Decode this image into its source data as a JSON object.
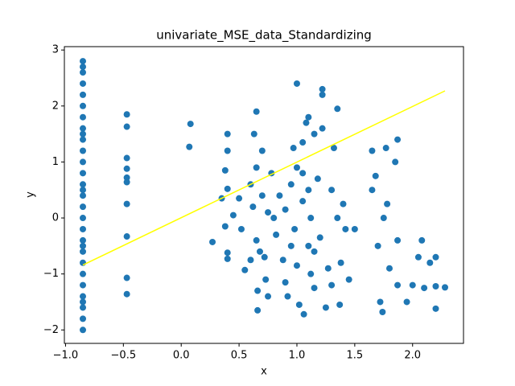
{
  "chart_data": {
    "type": "scatter",
    "title": "univariate_MSE_data_Standardizing",
    "xlabel": "x",
    "ylabel": "y",
    "xlim": [
      -1.01,
      2.44
    ],
    "ylim": [
      -2.24,
      3.06
    ],
    "xticks": [
      {
        "value": -1,
        "label": "−1.0"
      },
      {
        "value": -0.5,
        "label": "−0.5"
      },
      {
        "value": 0,
        "label": "0.0"
      },
      0.5,
      {
        "value": 1,
        "label": "1.0"
      },
      1.5,
      {
        "value": 2,
        "label": "2.0"
      }
    ],
    "yticks": [
      {
        "value": -2,
        "label": "−2"
      },
      {
        "value": -1,
        "label": "−1"
      },
      0,
      1,
      2,
      3
    ],
    "points": {
      "color": "#1f77b4",
      "x": [
        -0.85,
        -0.85,
        -0.85,
        -0.85,
        -0.85,
        -0.85,
        -0.85,
        -0.85,
        -0.85,
        -0.85,
        -0.85,
        -0.85,
        -0.85,
        -0.85,
        -0.85,
        -0.85,
        -0.85,
        -0.85,
        -0.85,
        -0.85,
        -0.85,
        -0.85,
        -0.85,
        -0.85,
        -0.85,
        -0.85,
        -0.85,
        -0.85,
        -0.85,
        -0.85,
        -0.47,
        -0.47,
        -0.47,
        -0.47,
        -0.47,
        -0.47,
        -0.47,
        -0.47,
        -0.47,
        -0.47,
        0.08,
        0.07,
        0.27,
        0.35,
        0.38,
        0.38,
        0.4,
        0.4,
        0.4,
        0.4,
        0.4,
        0.45,
        0.5,
        0.52,
        0.55,
        0.6,
        0.62,
        0.63,
        0.65,
        0.65,
        0.65,
        0.66,
        0.66,
        0.7,
        0.7,
        0.72,
        0.73,
        0.75,
        0.75,
        0.78,
        0.82,
        0.85,
        0.88,
        0.9,
        0.9,
        0.92,
        0.95,
        0.97,
        0.98,
        1.0,
        1.0,
        1.0,
        1.02,
        1.05,
        1.05,
        1.06,
        1.08,
        1.1,
        1.1,
        1.12,
        1.12,
        1.15,
        1.15,
        1.18,
        1.2,
        1.22,
        1.22,
        1.22,
        1.25,
        1.27,
        1.3,
        1.32,
        1.35,
        1.35,
        1.37,
        1.38,
        1.4,
        1.42,
        1.45,
        1.5,
        1.65,
        1.65,
        1.68,
        1.7,
        1.72,
        1.74,
        1.75,
        1.77,
        1.78,
        1.8,
        1.85,
        1.87,
        1.87,
        1.87,
        1.95,
        2.0,
        2.05,
        2.08,
        2.1,
        2.15,
        2.2,
        2.2,
        2.2,
        2.28,
        0.68,
        0.6,
        0.8,
        0.95,
        1.05,
        1.1,
        1.15,
        1.3
      ],
      "y": [
        2.8,
        2.7,
        2.6,
        2.4,
        2.2,
        2.0,
        1.8,
        1.6,
        1.4,
        1.2,
        1.0,
        0.8,
        0.6,
        0.4,
        0.2,
        0.0,
        -0.2,
        -0.4,
        -0.6,
        -0.8,
        -1.0,
        -1.2,
        -1.4,
        -1.6,
        -1.8,
        -2.0,
        1.5,
        0.5,
        -0.5,
        -1.5,
        1.85,
        1.63,
        1.07,
        0.88,
        0.72,
        0.64,
        0.25,
        -0.33,
        -1.07,
        -1.36,
        1.68,
        1.27,
        -0.43,
        0.35,
        -0.15,
        0.85,
        1.5,
        1.2,
        0.52,
        -0.73,
        -0.62,
        0.05,
        0.35,
        -0.2,
        -0.93,
        0.6,
        0.2,
        1.5,
        1.9,
        0.9,
        -0.4,
        -1.65,
        -1.3,
        0.4,
        1.2,
        -0.7,
        -1.1,
        0.1,
        -1.4,
        0.8,
        -0.3,
        0.4,
        -0.75,
        0.15,
        -1.15,
        -1.4,
        0.6,
        1.25,
        -0.2,
        2.4,
        0.9,
        -0.85,
        -1.55,
        1.35,
        0.3,
        -1.72,
        1.7,
        1.8,
        -0.5,
        0.0,
        -1.0,
        1.5,
        -1.25,
        0.7,
        -0.35,
        2.3,
        1.6,
        2.2,
        -1.6,
        -0.9,
        0.5,
        1.25,
        1.95,
        0.0,
        -1.55,
        -0.8,
        0.25,
        -0.2,
        -1.1,
        -0.2,
        1.2,
        0.5,
        0.75,
        -0.5,
        -1.5,
        -1.68,
        0.0,
        1.25,
        0.25,
        -0.9,
        1.0,
        1.4,
        -0.4,
        -1.2,
        -1.5,
        -1.2,
        -0.7,
        -0.4,
        -1.25,
        -0.8,
        -0.7,
        -1.22,
        -1.62,
        -1.24,
        -0.6,
        -0.75,
        0.0,
        -0.5,
        0.8,
        0.5,
        -0.6,
        -1.2
      ]
    },
    "fit_line": {
      "color": "#ffff00",
      "x": [
        -0.85,
        2.28
      ],
      "y": [
        -0.84,
        2.27
      ]
    }
  }
}
